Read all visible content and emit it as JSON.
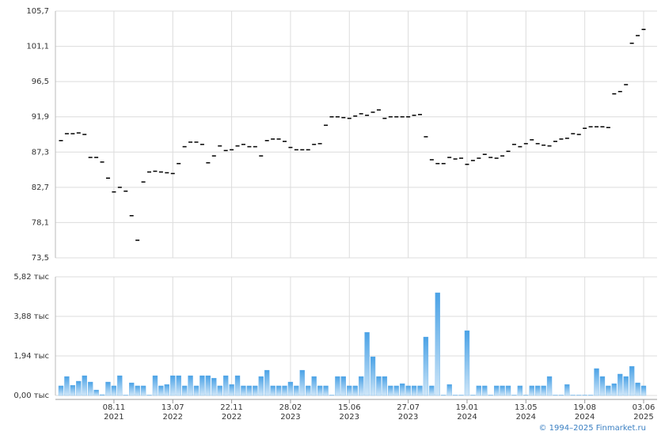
{
  "chart_data": [
    {
      "type": "dash",
      "color": "#000000",
      "values": [
        88.8,
        89.7,
        89.7,
        89.8,
        89.6,
        86.6,
        86.6,
        86.0,
        83.9,
        82.1,
        82.7,
        82.2,
        79.0,
        75.8,
        83.4,
        84.7,
        84.8,
        84.7,
        84.6,
        84.5,
        85.8,
        88.0,
        88.6,
        88.6,
        88.3,
        85.9,
        86.8,
        88.1,
        87.5,
        87.6,
        88.1,
        88.3,
        88.0,
        88.0,
        86.8,
        88.8,
        89.0,
        89.0,
        88.7,
        87.9,
        87.6,
        87.6,
        87.6,
        88.3,
        88.4,
        90.8,
        91.9,
        91.9,
        91.8,
        91.7,
        92.0,
        92.3,
        92.1,
        92.5,
        92.8,
        91.7,
        91.9,
        91.9,
        91.9,
        91.9,
        92.1,
        92.2,
        89.3,
        86.3,
        85.8,
        85.8,
        86.6,
        86.4,
        86.5,
        85.7,
        86.2,
        86.5,
        87.0,
        86.6,
        86.5,
        86.8,
        87.4,
        88.3,
        88.0,
        88.4,
        88.9,
        88.4,
        88.2,
        88.1,
        88.7,
        89.0,
        89.1,
        89.7,
        89.6,
        90.4,
        90.6,
        90.6,
        90.6,
        90.5,
        94.9,
        95.2,
        96.1,
        101.5,
        102.5,
        103.3
      ],
      "ylim": [
        73.5,
        105.7
      ],
      "yticks": [
        {
          "value": 73.5,
          "label": "73,5"
        },
        {
          "value": 78.1,
          "label": "78,1"
        },
        {
          "value": 82.7,
          "label": "82,7"
        },
        {
          "value": 87.3,
          "label": "87,3"
        },
        {
          "value": 91.9,
          "label": "91,9"
        },
        {
          "value": 96.5,
          "label": "96,5"
        },
        {
          "value": 101.1,
          "label": "101,1"
        },
        {
          "value": 105.7,
          "label": "105,7"
        }
      ],
      "grid": true
    },
    {
      "type": "bar",
      "color": "#5aaae8",
      "values": [
        0.47,
        0.93,
        0.5,
        0.7,
        0.97,
        0.66,
        0.27,
        0.04,
        0.66,
        0.47,
        0.97,
        0.02,
        0.62,
        0.47,
        0.47,
        0.02,
        0.97,
        0.47,
        0.54,
        0.97,
        0.97,
        0.47,
        0.97,
        0.47,
        0.97,
        0.97,
        0.85,
        0.47,
        0.97,
        0.54,
        0.97,
        0.47,
        0.47,
        0.47,
        0.93,
        1.24,
        0.47,
        0.47,
        0.47,
        0.66,
        0.47,
        1.24,
        0.47,
        0.93,
        0.47,
        0.47,
        0.02,
        0.93,
        0.93,
        0.47,
        0.47,
        0.93,
        3.1,
        1.9,
        0.93,
        0.93,
        0.47,
        0.47,
        0.58,
        0.47,
        0.47,
        0.47,
        2.87,
        0.47,
        5.04,
        0.02,
        0.54,
        0.02,
        0.02,
        3.18,
        0.02,
        0.47,
        0.47,
        0.02,
        0.47,
        0.47,
        0.47,
        0.02,
        0.47,
        0.02,
        0.47,
        0.47,
        0.47,
        0.93,
        0.02,
        0.02,
        0.54,
        0.02,
        0.02,
        0.02,
        0.02,
        1.32,
        0.93,
        0.47,
        0.58,
        1.05,
        0.93,
        1.43,
        0.62,
        0.47
      ],
      "ylim": [
        0,
        5.82
      ],
      "yticks": [
        {
          "value": 0,
          "label": "0,00 тыс"
        },
        {
          "value": 1.94,
          "label": "1,94 тыс"
        },
        {
          "value": 3.88,
          "label": "3,88 тыс"
        },
        {
          "value": 5.82,
          "label": "5,82 тыс"
        }
      ],
      "xticks": [
        {
          "value": 9,
          "label": "08.11"
        },
        {
          "value": 19,
          "label": "13.07"
        },
        {
          "value": 29,
          "label": "22.11"
        },
        {
          "value": 39,
          "label": "28.02"
        },
        {
          "value": 49,
          "label": "15.06"
        },
        {
          "value": 59,
          "label": "27.07"
        },
        {
          "value": 69,
          "label": "19.01"
        },
        {
          "value": 79,
          "label": "13.05"
        },
        {
          "value": 89,
          "label": "19.08"
        },
        {
          "value": 99,
          "label": "03.06"
        }
      ],
      "xtick_years": [
        "2021",
        "2022",
        "2022",
        "2023",
        "2023",
        "2023",
        "2024",
        "2024",
        "2024",
        "2025"
      ],
      "grid": true,
      "footer": "© 1994–2025 Finmarket.ru"
    }
  ]
}
